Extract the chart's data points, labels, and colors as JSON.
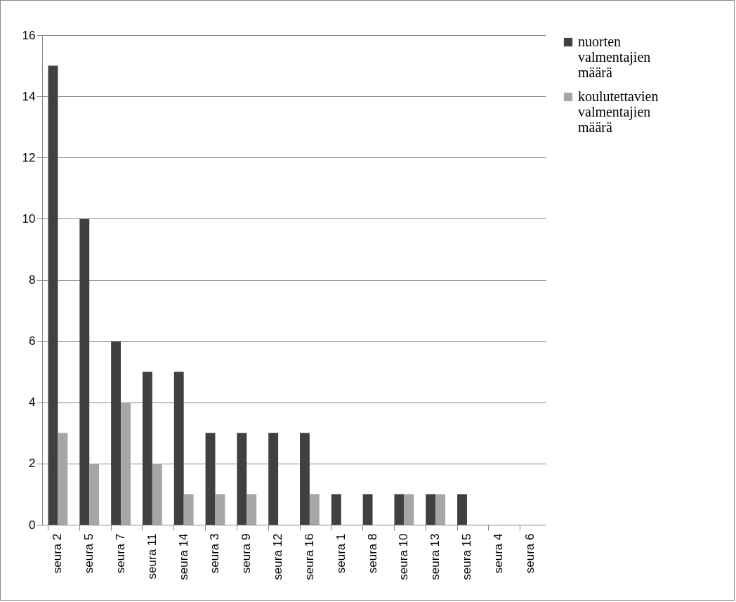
{
  "chart_data": {
    "type": "bar",
    "categories": [
      "seura 2",
      "seura 5",
      "seura 7",
      "seura 11",
      "seura 14",
      "seura 3",
      "seura 9",
      "seura 12",
      "seura 16",
      "seura 1",
      "seura 8",
      "seura 10",
      "seura 13",
      "seura 15",
      "seura 4",
      "seura 6"
    ],
    "series": [
      {
        "name": "nuorten valmentajien määrä",
        "color": "#404040",
        "values": [
          15,
          10,
          6,
          5,
          5,
          3,
          3,
          3,
          3,
          1,
          1,
          1,
          1,
          1,
          0,
          0
        ]
      },
      {
        "name": "koulutettavien valmentajien määrä",
        "color": "#a6a6a6",
        "values": [
          3,
          2,
          4,
          2,
          1,
          1,
          1,
          0,
          1,
          0,
          0,
          1,
          1,
          0,
          0,
          0
        ]
      }
    ],
    "ylim": [
      0,
      16
    ],
    "yticks": [
      0,
      2,
      4,
      6,
      8,
      10,
      12,
      14,
      16
    ],
    "grid": "y",
    "legend": "right"
  }
}
